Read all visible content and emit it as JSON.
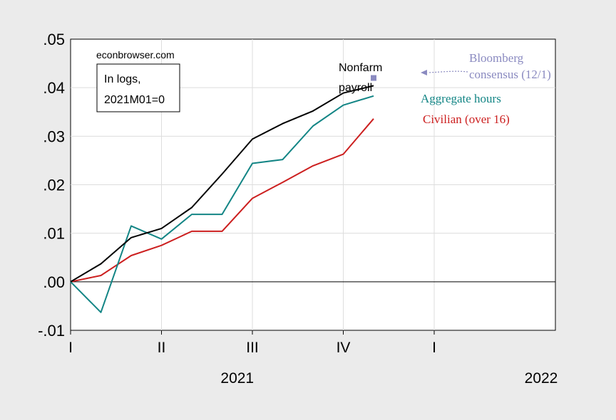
{
  "chart_data": {
    "type": "line",
    "x": [
      "2021-01",
      "2021-02",
      "2021-03",
      "2021-04",
      "2021-05",
      "2021-06",
      "2021-07",
      "2021-08",
      "2021-09",
      "2021-10",
      "2021-11"
    ],
    "ylim": [
      -0.01,
      0.05
    ],
    "xlim": [
      "2021-01",
      "2022-05"
    ],
    "yticks": [
      ".05",
      ".04",
      ".03",
      ".02",
      ".01",
      ".00",
      "-.01"
    ],
    "ytick_values": [
      0.05,
      0.04,
      0.03,
      0.02,
      0.01,
      0.0,
      -0.01
    ],
    "quarter_ticks": [
      "I",
      "II",
      "III",
      "IV",
      "I"
    ],
    "years": [
      "2021",
      "2022"
    ],
    "grid": true,
    "series": [
      {
        "name": "Nonfarm payroll",
        "label_lines": [
          "Nonfarm",
          "payroll"
        ],
        "color": "#000000",
        "values": [
          0.0,
          0.0037,
          0.0091,
          0.011,
          0.0153,
          0.0222,
          0.0294,
          0.0326,
          0.0352,
          0.0389,
          0.0404
        ]
      },
      {
        "name": "Aggregate hours",
        "color": "#138585",
        "values": [
          0.0,
          -0.0063,
          0.0115,
          0.0088,
          0.0139,
          0.0139,
          0.0244,
          0.0252,
          0.0321,
          0.0364,
          0.0383
        ]
      },
      {
        "name": "Civilian (over 16)",
        "color": "#cc1f1f",
        "values": [
          0.0,
          0.0013,
          0.0054,
          0.0075,
          0.0104,
          0.0104,
          0.0172,
          0.0205,
          0.0239,
          0.0263,
          0.0336
        ]
      }
    ],
    "consensus": {
      "label_lines": [
        "Bloomberg",
        "consensus (12/1)"
      ],
      "x": "2021-11",
      "y": 0.042,
      "color": "#8a8ac0"
    },
    "source_note": "econbrowser.com",
    "box_lines": [
      "In logs,",
      "2021M01=0"
    ]
  }
}
